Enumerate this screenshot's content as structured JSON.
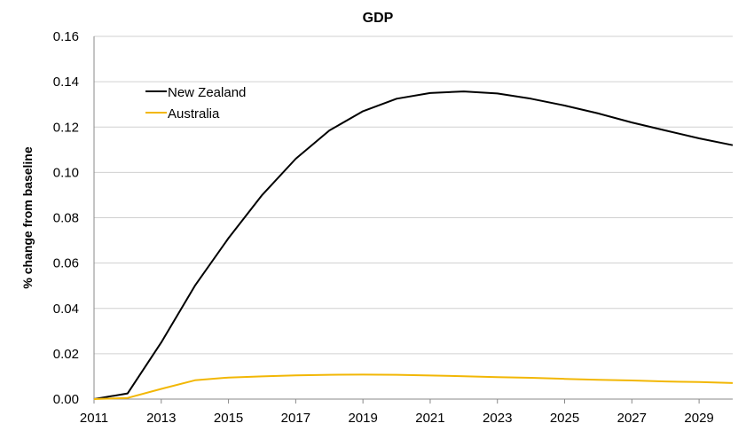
{
  "chart_data": {
    "type": "line",
    "title": "GDP",
    "xlabel": "",
    "ylabel": "% change from baseline",
    "x": [
      2011,
      2012,
      2013,
      2014,
      2015,
      2016,
      2017,
      2018,
      2019,
      2020,
      2021,
      2022,
      2023,
      2024,
      2025,
      2026,
      2027,
      2028,
      2029,
      2030
    ],
    "xticks": [
      2011,
      2013,
      2015,
      2017,
      2019,
      2021,
      2023,
      2025,
      2027,
      2029
    ],
    "xtick_labels": [
      "2011",
      "2013",
      "2015",
      "2017",
      "2019",
      "2021",
      "2023",
      "2025",
      "2027",
      "2029"
    ],
    "xlim": [
      2011,
      2030
    ],
    "ylim": [
      0,
      0.16
    ],
    "yticks": [
      0,
      0.02,
      0.04,
      0.06,
      0.08,
      0.1,
      0.12,
      0.14,
      0.16
    ],
    "ytick_labels": [
      "0.00",
      "0.02",
      "0.04",
      "0.06",
      "0.08",
      "0.10",
      "0.12",
      "0.14",
      "0.16"
    ],
    "grid": true,
    "legend_position": "top-left",
    "series": [
      {
        "name": "New Zealand",
        "color": "#000000",
        "values": [
          0.0,
          0.0025,
          0.025,
          0.05,
          0.071,
          0.09,
          0.106,
          0.1185,
          0.127,
          0.1325,
          0.135,
          0.1357,
          0.1348,
          0.1325,
          0.1295,
          0.126,
          0.122,
          0.1185,
          0.115,
          0.112
        ]
      },
      {
        "name": "Australia",
        "color": "#F2B705",
        "values": [
          0.0,
          0.0005,
          0.0045,
          0.0083,
          0.0095,
          0.01,
          0.0105,
          0.0107,
          0.0108,
          0.0107,
          0.0104,
          0.0101,
          0.0097,
          0.0094,
          0.0089,
          0.0085,
          0.0082,
          0.0078,
          0.0075,
          0.0071
        ]
      }
    ]
  }
}
